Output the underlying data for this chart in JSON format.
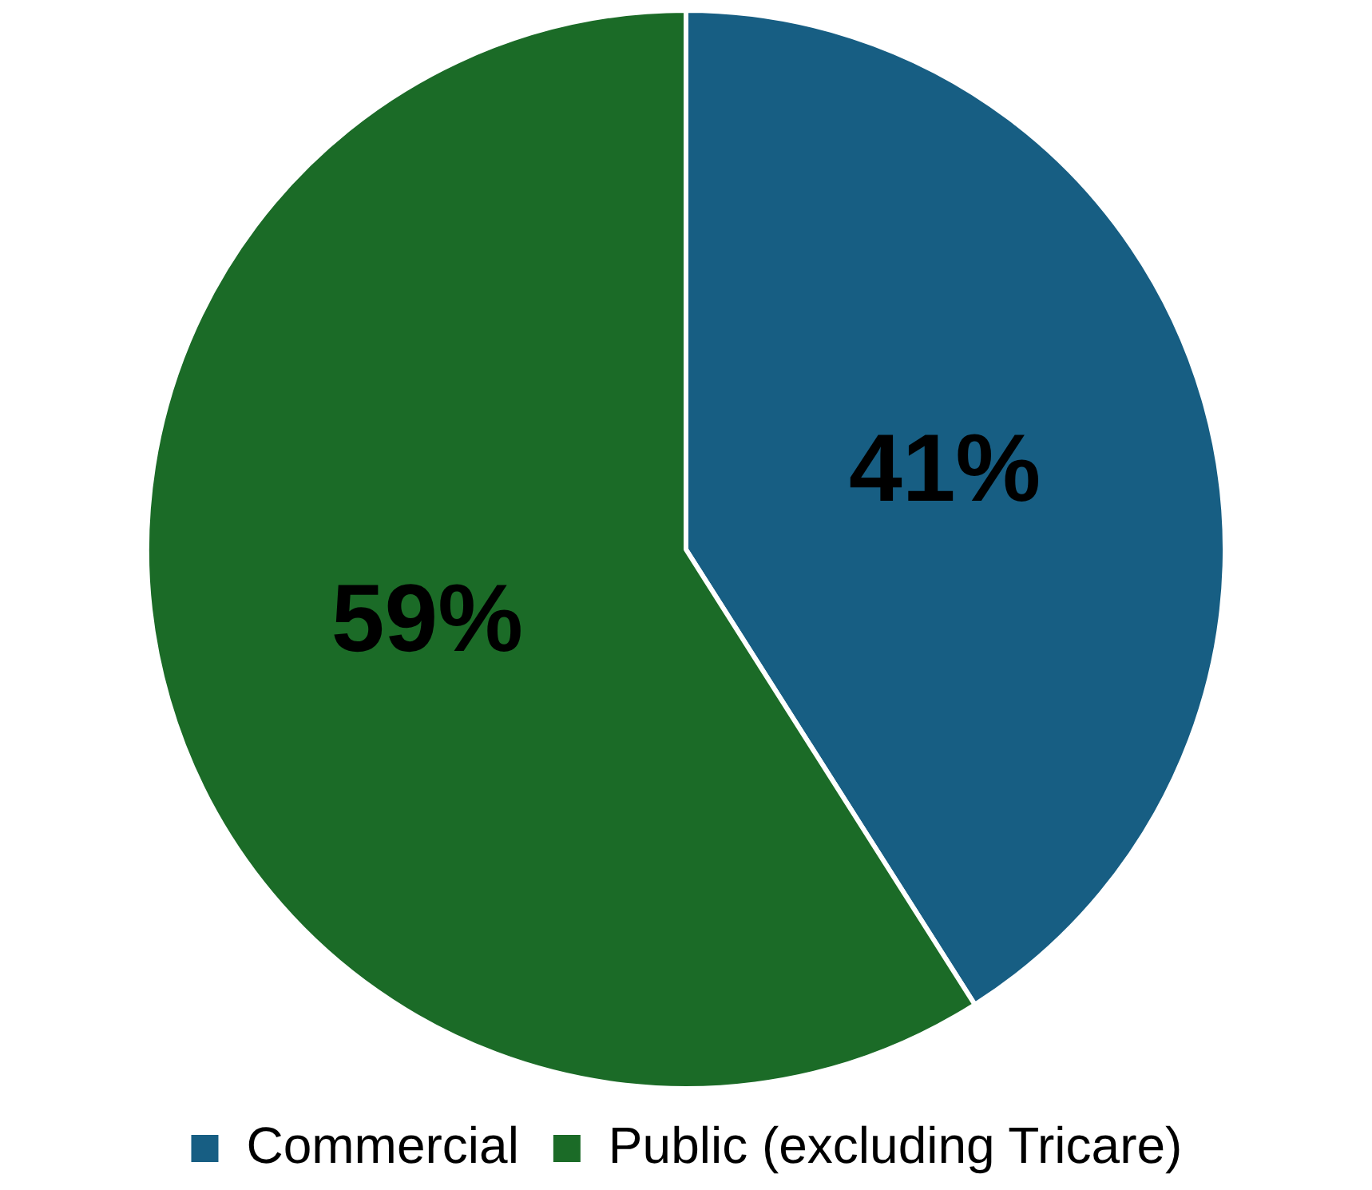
{
  "chart_data": {
    "type": "pie",
    "categories": [
      "Commercial",
      "Public (excluding Tricare)"
    ],
    "values": [
      41,
      59
    ],
    "colors": [
      "#175e83",
      "#1b6b27"
    ],
    "value_labels": [
      "41%",
      "59%"
    ],
    "legend": "bottom"
  }
}
